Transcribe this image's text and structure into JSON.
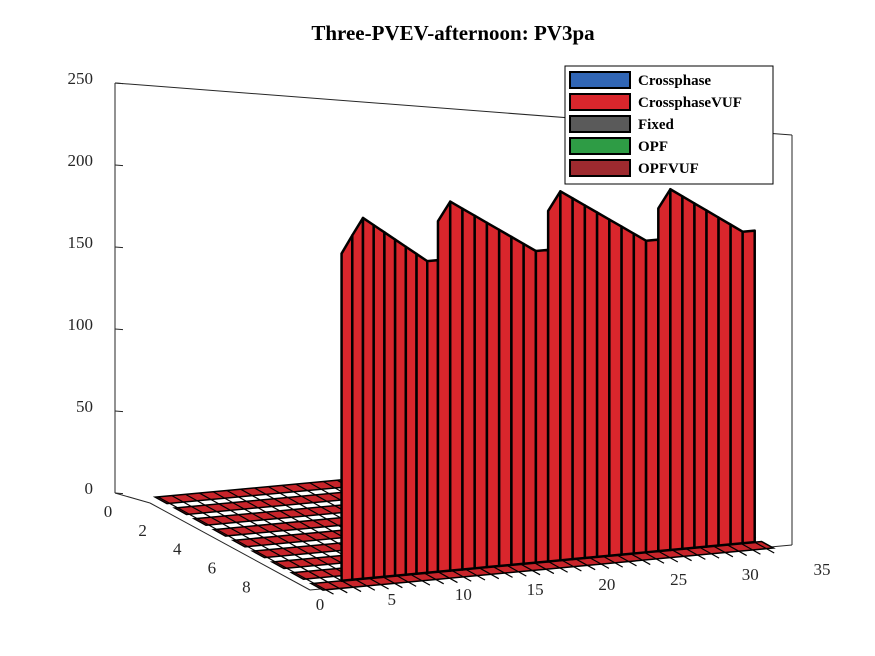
{
  "chart_data": {
    "type": "bar3d",
    "title": "Three-PVEV-afternoon: PV3pa",
    "xlabel": "",
    "ylabel": "",
    "zlabel": "",
    "x_ticks": [
      "0",
      "5",
      "10",
      "15",
      "20",
      "25",
      "30",
      "35"
    ],
    "y_ticks": [
      "0",
      "2",
      "4",
      "6",
      "8"
    ],
    "z_ticks": [
      "0",
      "50",
      "100",
      "150",
      "200",
      "250"
    ],
    "xlim": [
      0,
      35
    ],
    "ylim": [
      0,
      9
    ],
    "zlim": [
      0,
      250
    ],
    "legend_position": "top-right",
    "series": [
      {
        "name": "Crossphase",
        "color": "#3166b5"
      },
      {
        "name": "CrossphaseVUF",
        "color": "#d9262c"
      },
      {
        "name": "Fixed",
        "color": "#5a5a5a"
      },
      {
        "name": "OPF",
        "color": "#2e9c45"
      },
      {
        "name": "OPFVUF",
        "color": "#9e2a2f"
      }
    ],
    "walls": [
      {
        "series": "CrossphaseVUF",
        "x_start": 3,
        "x_end": 10,
        "row": 8,
        "z_profile": [
          0,
          210,
          220,
          215,
          210,
          205,
          200,
          195,
          190,
          0
        ]
      },
      {
        "series": "CrossphaseVUF",
        "x_start": 10,
        "x_end": 18,
        "row": 8,
        "z_profile": [
          0,
          225,
          220,
          215,
          210,
          205,
          200,
          195,
          190,
          0
        ]
      },
      {
        "series": "CrossphaseVUF",
        "x_start": 18,
        "x_end": 26,
        "row": 8,
        "z_profile": [
          0,
          225,
          220,
          215,
          210,
          205,
          200,
          195,
          190,
          0
        ]
      },
      {
        "series": "CrossphaseVUF",
        "x_start": 26,
        "x_end": 33,
        "row": 8,
        "z_profile": [
          0,
          220,
          215,
          210,
          205,
          200,
          195,
          190,
          0
        ]
      }
    ],
    "grid": false
  }
}
